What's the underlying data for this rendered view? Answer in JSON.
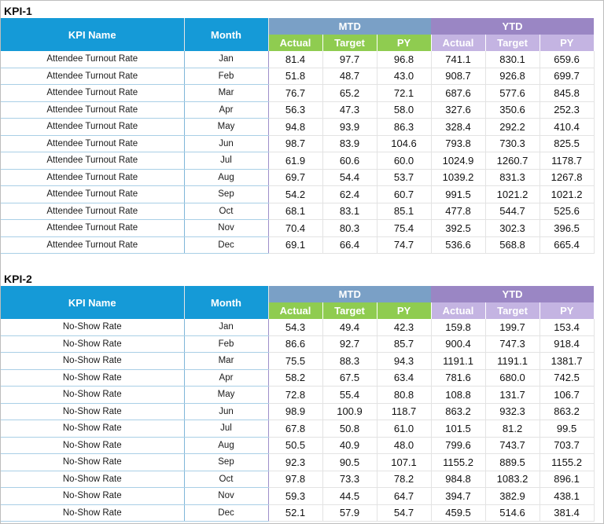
{
  "columns": {
    "kpi_name": "KPI Name",
    "month": "Month",
    "mtd": "MTD",
    "ytd": "YTD",
    "actual": "Actual",
    "target": "Target",
    "py": "PY"
  },
  "kpis": [
    {
      "title": "KPI-1",
      "rows": [
        {
          "name": "Attendee Turnout Rate",
          "month": "Jan",
          "mtd_actual": "81.4",
          "mtd_target": "97.7",
          "mtd_py": "96.8",
          "ytd_actual": "741.1",
          "ytd_target": "830.1",
          "ytd_py": "659.6"
        },
        {
          "name": "Attendee Turnout Rate",
          "month": "Feb",
          "mtd_actual": "51.8",
          "mtd_target": "48.7",
          "mtd_py": "43.0",
          "ytd_actual": "908.7",
          "ytd_target": "926.8",
          "ytd_py": "699.7"
        },
        {
          "name": "Attendee Turnout Rate",
          "month": "Mar",
          "mtd_actual": "76.7",
          "mtd_target": "65.2",
          "mtd_py": "72.1",
          "ytd_actual": "687.6",
          "ytd_target": "577.6",
          "ytd_py": "845.8"
        },
        {
          "name": "Attendee Turnout Rate",
          "month": "Apr",
          "mtd_actual": "56.3",
          "mtd_target": "47.3",
          "mtd_py": "58.0",
          "ytd_actual": "327.6",
          "ytd_target": "350.6",
          "ytd_py": "252.3"
        },
        {
          "name": "Attendee Turnout Rate",
          "month": "May",
          "mtd_actual": "94.8",
          "mtd_target": "93.9",
          "mtd_py": "86.3",
          "ytd_actual": "328.4",
          "ytd_target": "292.2",
          "ytd_py": "410.4"
        },
        {
          "name": "Attendee Turnout Rate",
          "month": "Jun",
          "mtd_actual": "98.7",
          "mtd_target": "83.9",
          "mtd_py": "104.6",
          "ytd_actual": "793.8",
          "ytd_target": "730.3",
          "ytd_py": "825.5"
        },
        {
          "name": "Attendee Turnout Rate",
          "month": "Jul",
          "mtd_actual": "61.9",
          "mtd_target": "60.6",
          "mtd_py": "60.0",
          "ytd_actual": "1024.9",
          "ytd_target": "1260.7",
          "ytd_py": "1178.7"
        },
        {
          "name": "Attendee Turnout Rate",
          "month": "Aug",
          "mtd_actual": "69.7",
          "mtd_target": "54.4",
          "mtd_py": "53.7",
          "ytd_actual": "1039.2",
          "ytd_target": "831.3",
          "ytd_py": "1267.8"
        },
        {
          "name": "Attendee Turnout Rate",
          "month": "Sep",
          "mtd_actual": "54.2",
          "mtd_target": "62.4",
          "mtd_py": "60.7",
          "ytd_actual": "991.5",
          "ytd_target": "1021.2",
          "ytd_py": "1021.2"
        },
        {
          "name": "Attendee Turnout Rate",
          "month": "Oct",
          "mtd_actual": "68.1",
          "mtd_target": "83.1",
          "mtd_py": "85.1",
          "ytd_actual": "477.8",
          "ytd_target": "544.7",
          "ytd_py": "525.6"
        },
        {
          "name": "Attendee Turnout Rate",
          "month": "Nov",
          "mtd_actual": "70.4",
          "mtd_target": "80.3",
          "mtd_py": "75.4",
          "ytd_actual": "392.5",
          "ytd_target": "302.3",
          "ytd_py": "396.5"
        },
        {
          "name": "Attendee Turnout Rate",
          "month": "Dec",
          "mtd_actual": "69.1",
          "mtd_target": "66.4",
          "mtd_py": "74.7",
          "ytd_actual": "536.6",
          "ytd_target": "568.8",
          "ytd_py": "665.4"
        }
      ]
    },
    {
      "title": "KPI-2",
      "rows": [
        {
          "name": "No-Show Rate",
          "month": "Jan",
          "mtd_actual": "54.3",
          "mtd_target": "49.4",
          "mtd_py": "42.3",
          "ytd_actual": "159.8",
          "ytd_target": "199.7",
          "ytd_py": "153.4"
        },
        {
          "name": "No-Show Rate",
          "month": "Feb",
          "mtd_actual": "86.6",
          "mtd_target": "92.7",
          "mtd_py": "85.7",
          "ytd_actual": "900.4",
          "ytd_target": "747.3",
          "ytd_py": "918.4"
        },
        {
          "name": "No-Show Rate",
          "month": "Mar",
          "mtd_actual": "75.5",
          "mtd_target": "88.3",
          "mtd_py": "94.3",
          "ytd_actual": "1191.1",
          "ytd_target": "1191.1",
          "ytd_py": "1381.7"
        },
        {
          "name": "No-Show Rate",
          "month": "Apr",
          "mtd_actual": "58.2",
          "mtd_target": "67.5",
          "mtd_py": "63.4",
          "ytd_actual": "781.6",
          "ytd_target": "680.0",
          "ytd_py": "742.5"
        },
        {
          "name": "No-Show Rate",
          "month": "May",
          "mtd_actual": "72.8",
          "mtd_target": "55.4",
          "mtd_py": "80.8",
          "ytd_actual": "108.8",
          "ytd_target": "131.7",
          "ytd_py": "106.7"
        },
        {
          "name": "No-Show Rate",
          "month": "Jun",
          "mtd_actual": "98.9",
          "mtd_target": "100.9",
          "mtd_py": "118.7",
          "ytd_actual": "863.2",
          "ytd_target": "932.3",
          "ytd_py": "863.2"
        },
        {
          "name": "No-Show Rate",
          "month": "Jul",
          "mtd_actual": "67.8",
          "mtd_target": "50.8",
          "mtd_py": "61.0",
          "ytd_actual": "101.5",
          "ytd_target": "81.2",
          "ytd_py": "99.5"
        },
        {
          "name": "No-Show Rate",
          "month": "Aug",
          "mtd_actual": "50.5",
          "mtd_target": "40.9",
          "mtd_py": "48.0",
          "ytd_actual": "799.6",
          "ytd_target": "743.7",
          "ytd_py": "703.7"
        },
        {
          "name": "No-Show Rate",
          "month": "Sep",
          "mtd_actual": "92.3",
          "mtd_target": "90.5",
          "mtd_py": "107.1",
          "ytd_actual": "1155.2",
          "ytd_target": "889.5",
          "ytd_py": "1155.2"
        },
        {
          "name": "No-Show Rate",
          "month": "Oct",
          "mtd_actual": "97.8",
          "mtd_target": "73.3",
          "mtd_py": "78.2",
          "ytd_actual": "984.8",
          "ytd_target": "1083.2",
          "ytd_py": "896.1"
        },
        {
          "name": "No-Show Rate",
          "month": "Nov",
          "mtd_actual": "59.3",
          "mtd_target": "44.5",
          "mtd_py": "64.7",
          "ytd_actual": "394.7",
          "ytd_target": "382.9",
          "ytd_py": "438.1"
        },
        {
          "name": "No-Show Rate",
          "month": "Dec",
          "mtd_actual": "52.1",
          "mtd_target": "57.9",
          "mtd_py": "54.7",
          "ytd_actual": "459.5",
          "ytd_target": "514.6",
          "ytd_py": "381.4"
        }
      ]
    }
  ]
}
